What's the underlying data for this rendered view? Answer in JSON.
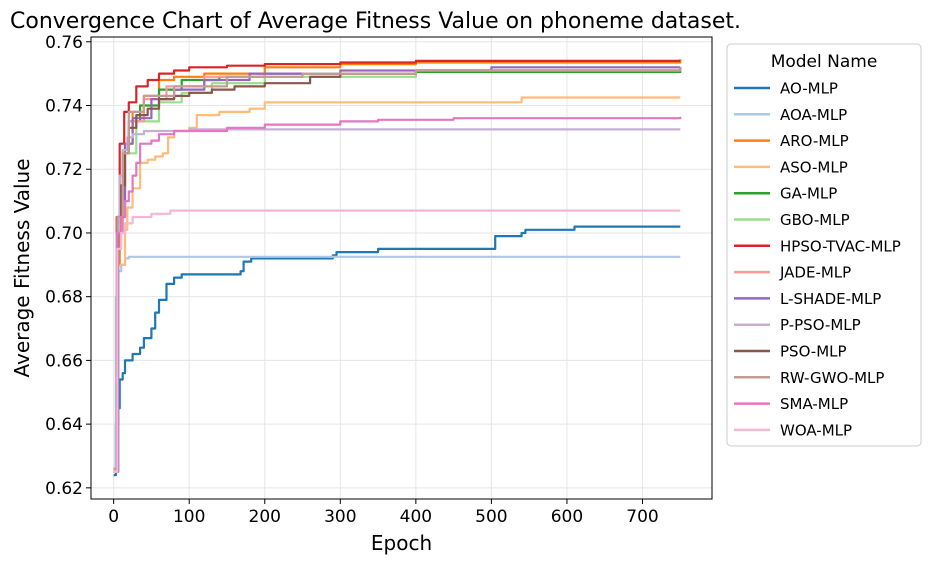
{
  "chart_data": {
    "type": "line",
    "title": "Convergence Chart of Average Fitness Value on phoneme dataset.",
    "xlabel": "Epoch",
    "ylabel": "Average Fitness Value",
    "xlim": [
      -30,
      792
    ],
    "ylim": [
      0.6165,
      0.7615
    ],
    "xticks": [
      "0",
      "100",
      "200",
      "300",
      "400",
      "500",
      "600",
      "700"
    ],
    "yticks": [
      "0.62",
      "0.64",
      "0.66",
      "0.68",
      "0.70",
      "0.72",
      "0.74",
      "0.76"
    ],
    "grid": true,
    "legend_title": "Model Name",
    "legend_position": "outside-right",
    "series": [
      {
        "name": "AO-MLP",
        "color": "#1f77b4",
        "points": [
          [
            0,
            0.624
          ],
          [
            3,
            0.64
          ],
          [
            6,
            0.645
          ],
          [
            8,
            0.654
          ],
          [
            12,
            0.656
          ],
          [
            15,
            0.66
          ],
          [
            25,
            0.662
          ],
          [
            35,
            0.664
          ],
          [
            40,
            0.667
          ],
          [
            50,
            0.67
          ],
          [
            55,
            0.675
          ],
          [
            60,
            0.679
          ],
          [
            70,
            0.684
          ],
          [
            80,
            0.686
          ],
          [
            90,
            0.687
          ],
          [
            120,
            0.687
          ],
          [
            168,
            0.688
          ],
          [
            172,
            0.691
          ],
          [
            182,
            0.692
          ],
          [
            290,
            0.693
          ],
          [
            295,
            0.694
          ],
          [
            350,
            0.695
          ],
          [
            500,
            0.695
          ],
          [
            505,
            0.699
          ],
          [
            540,
            0.7
          ],
          [
            545,
            0.701
          ],
          [
            600,
            0.701
          ],
          [
            610,
            0.702
          ],
          [
            750,
            0.702
          ]
        ]
      },
      {
        "name": "AOA-MLP",
        "color": "#aec7e8",
        "points": [
          [
            0,
            0.625
          ],
          [
            3,
            0.68
          ],
          [
            6,
            0.688
          ],
          [
            10,
            0.69
          ],
          [
            15,
            0.692
          ],
          [
            20,
            0.6925
          ],
          [
            750,
            0.6925
          ]
        ]
      },
      {
        "name": "ARO-MLP",
        "color": "#ff7f0e",
        "points": [
          [
            0,
            0.626
          ],
          [
            4,
            0.69
          ],
          [
            8,
            0.712
          ],
          [
            15,
            0.728
          ],
          [
            25,
            0.738
          ],
          [
            40,
            0.743
          ],
          [
            60,
            0.748
          ],
          [
            80,
            0.749
          ],
          [
            120,
            0.75
          ],
          [
            200,
            0.752
          ],
          [
            300,
            0.753
          ],
          [
            400,
            0.7535
          ],
          [
            750,
            0.7545
          ]
        ]
      },
      {
        "name": "ASO-MLP",
        "color": "#ffbb78",
        "points": [
          [
            0,
            0.625
          ],
          [
            5,
            0.69
          ],
          [
            15,
            0.701
          ],
          [
            18,
            0.708
          ],
          [
            25,
            0.714
          ],
          [
            35,
            0.722
          ],
          [
            45,
            0.723
          ],
          [
            55,
            0.724
          ],
          [
            65,
            0.725
          ],
          [
            72,
            0.73
          ],
          [
            80,
            0.732
          ],
          [
            100,
            0.733
          ],
          [
            110,
            0.737
          ],
          [
            140,
            0.738
          ],
          [
            160,
            0.738
          ],
          [
            180,
            0.739
          ],
          [
            200,
            0.741
          ],
          [
            300,
            0.741
          ],
          [
            500,
            0.741
          ],
          [
            540,
            0.7425
          ],
          [
            750,
            0.7425
          ]
        ]
      },
      {
        "name": "GA-MLP",
        "color": "#2ca02c",
        "points": [
          [
            0,
            0.626
          ],
          [
            5,
            0.7
          ],
          [
            12,
            0.725
          ],
          [
            20,
            0.735
          ],
          [
            35,
            0.74
          ],
          [
            60,
            0.745
          ],
          [
            90,
            0.748
          ],
          [
            140,
            0.749
          ],
          [
            200,
            0.75
          ],
          [
            400,
            0.7505
          ],
          [
            750,
            0.751
          ]
        ]
      },
      {
        "name": "GBO-MLP",
        "color": "#98df8a",
        "points": [
          [
            0,
            0.625
          ],
          [
            6,
            0.705
          ],
          [
            15,
            0.725
          ],
          [
            30,
            0.735
          ],
          [
            60,
            0.741
          ],
          [
            90,
            0.744
          ],
          [
            130,
            0.747
          ],
          [
            200,
            0.749
          ],
          [
            400,
            0.751
          ],
          [
            750,
            0.752
          ]
        ]
      },
      {
        "name": "HPSO-TVAC-MLP",
        "color": "#d62728",
        "points": [
          [
            0,
            0.626
          ],
          [
            4,
            0.705
          ],
          [
            8,
            0.728
          ],
          [
            14,
            0.738
          ],
          [
            20,
            0.741
          ],
          [
            30,
            0.746
          ],
          [
            45,
            0.748
          ],
          [
            60,
            0.75
          ],
          [
            80,
            0.751
          ],
          [
            100,
            0.752
          ],
          [
            150,
            0.7525
          ],
          [
            200,
            0.753
          ],
          [
            300,
            0.7535
          ],
          [
            400,
            0.754
          ],
          [
            750,
            0.754
          ]
        ]
      },
      {
        "name": "JADE-MLP",
        "color": "#ff9896",
        "points": [
          [
            0,
            0.626
          ],
          [
            5,
            0.7
          ],
          [
            12,
            0.725
          ],
          [
            20,
            0.735
          ],
          [
            40,
            0.742
          ],
          [
            70,
            0.746
          ],
          [
            120,
            0.749
          ],
          [
            200,
            0.75
          ],
          [
            400,
            0.751
          ],
          [
            750,
            0.752
          ]
        ]
      },
      {
        "name": "L-SHADE-MLP",
        "color": "#9467bd",
        "points": [
          [
            0,
            0.625
          ],
          [
            6,
            0.705
          ],
          [
            15,
            0.728
          ],
          [
            25,
            0.736
          ],
          [
            50,
            0.742
          ],
          [
            80,
            0.745
          ],
          [
            120,
            0.748
          ],
          [
            180,
            0.75
          ],
          [
            300,
            0.751
          ],
          [
            500,
            0.752
          ],
          [
            750,
            0.752
          ]
        ]
      },
      {
        "name": "P-PSO-MLP",
        "color": "#c5b0d5",
        "points": [
          [
            0,
            0.626
          ],
          [
            4,
            0.7
          ],
          [
            8,
            0.718
          ],
          [
            12,
            0.726
          ],
          [
            18,
            0.73
          ],
          [
            25,
            0.731
          ],
          [
            40,
            0.732
          ],
          [
            100,
            0.7325
          ],
          [
            750,
            0.7325
          ]
        ]
      },
      {
        "name": "PSO-MLP",
        "color": "#8c564b",
        "points": [
          [
            0,
            0.625
          ],
          [
            5,
            0.7
          ],
          [
            10,
            0.715
          ],
          [
            15,
            0.725
          ],
          [
            20,
            0.733
          ],
          [
            30,
            0.737
          ],
          [
            45,
            0.739
          ],
          [
            60,
            0.742
          ],
          [
            80,
            0.743
          ],
          [
            100,
            0.744
          ],
          [
            130,
            0.745
          ],
          [
            160,
            0.746
          ],
          [
            200,
            0.747
          ],
          [
            260,
            0.749
          ],
          [
            300,
            0.75
          ],
          [
            400,
            0.751
          ],
          [
            600,
            0.751
          ],
          [
            750,
            0.752
          ]
        ]
      },
      {
        "name": "RW-GWO-MLP",
        "color": "#c49c94",
        "points": [
          [
            0,
            0.626
          ],
          [
            5,
            0.705
          ],
          [
            12,
            0.725
          ],
          [
            20,
            0.738
          ],
          [
            40,
            0.743
          ],
          [
            80,
            0.746
          ],
          [
            150,
            0.749
          ],
          [
            250,
            0.75
          ],
          [
            400,
            0.751
          ],
          [
            750,
            0.752
          ]
        ]
      },
      {
        "name": "SMA-MLP",
        "color": "#e377c2",
        "points": [
          [
            0,
            0.625
          ],
          [
            5,
            0.7
          ],
          [
            10,
            0.705
          ],
          [
            15,
            0.71
          ],
          [
            20,
            0.713
          ],
          [
            25,
            0.718
          ],
          [
            30,
            0.722
          ],
          [
            35,
            0.728
          ],
          [
            50,
            0.729
          ],
          [
            60,
            0.731
          ],
          [
            80,
            0.732
          ],
          [
            150,
            0.733
          ],
          [
            200,
            0.734
          ],
          [
            300,
            0.735
          ],
          [
            350,
            0.7355
          ],
          [
            450,
            0.736
          ],
          [
            750,
            0.7365
          ]
        ]
      },
      {
        "name": "WOA-MLP",
        "color": "#f7b6d2",
        "points": [
          [
            0,
            0.625
          ],
          [
            5,
            0.695
          ],
          [
            10,
            0.7
          ],
          [
            15,
            0.703
          ],
          [
            25,
            0.705
          ],
          [
            50,
            0.706
          ],
          [
            75,
            0.707
          ],
          [
            750,
            0.707
          ]
        ]
      }
    ]
  }
}
